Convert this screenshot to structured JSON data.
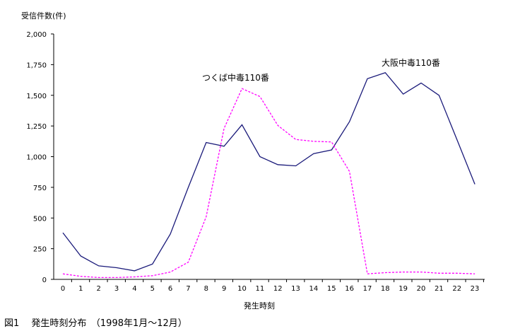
{
  "chart_data": {
    "type": "line",
    "ylabel": "受信件数(件)",
    "xlabel": "発生時刻",
    "x": [
      0,
      1,
      2,
      3,
      4,
      5,
      6,
      7,
      8,
      9,
      10,
      11,
      12,
      13,
      14,
      15,
      16,
      17,
      18,
      19,
      20,
      21,
      22,
      23
    ],
    "xticks": [
      "0",
      "1",
      "2",
      "3",
      "4",
      "5",
      "6",
      "7",
      "8",
      "9",
      "10",
      "11",
      "12",
      "13",
      "14",
      "15",
      "16",
      "17",
      "18",
      "19",
      "20",
      "21",
      "22",
      "23"
    ],
    "ylim": [
      0,
      2000
    ],
    "yticks": [
      0,
      250,
      500,
      750,
      1000,
      1250,
      1500,
      1750,
      2000
    ],
    "ytick_labels": [
      "0",
      "250",
      "500",
      "750",
      "1,000",
      "1,250",
      "1,500",
      "1,750",
      "2,000"
    ],
    "series": [
      {
        "name": "大阪中毒110番",
        "color": "#1a1a7a",
        "style": "solid",
        "values": [
          380,
          190,
          110,
          95,
          70,
          125,
          370,
          750,
          1115,
          1085,
          1260,
          1000,
          935,
          925,
          1025,
          1055,
          1285,
          1635,
          1685,
          1510,
          1600,
          1500,
          1140,
          775
        ]
      },
      {
        "name": "つくば中毒110番",
        "color": "#ff00ff",
        "style": "dashed",
        "values": [
          45,
          25,
          15,
          15,
          20,
          30,
          60,
          140,
          510,
          1230,
          1555,
          1490,
          1255,
          1140,
          1125,
          1120,
          880,
          45,
          55,
          60,
          60,
          50,
          50,
          45
        ]
      }
    ],
    "grid": false,
    "legend": "inline-annotations"
  },
  "caption": "図1　 発生時刻分布　（1998年1月〜12月）"
}
